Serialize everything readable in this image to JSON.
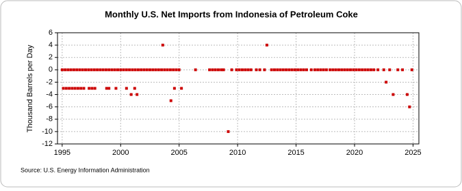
{
  "chart_data": {
    "type": "scatter",
    "title": "Monthly U.S. Net Imports from Indonesia of Petroleum Coke",
    "y_label": "Thousand Barrels per Day",
    "source": "Source: U.S. Energy Information Administration",
    "color": "#cc0000",
    "grid": true,
    "xlim": [
      1994.6,
      2025.5
    ],
    "xticks": [
      1995,
      2000,
      2005,
      2010,
      2015,
      2020,
      2025
    ],
    "ylim": [
      -12,
      6
    ],
    "yticks": [
      -12,
      -10,
      -8,
      -6,
      -4,
      -2,
      0,
      2,
      4,
      6
    ],
    "x": [
      1995,
      1995.25,
      1995.5,
      1995.75,
      1996,
      1996.25,
      1996.5,
      1996.75,
      1997,
      1997.25,
      1997.5,
      1997.75,
      1998,
      1998.25,
      1998.5,
      1998.75,
      1999,
      1999.25,
      1999.5,
      1999.75,
      2000,
      2000.25,
      2000.5,
      2000.75,
      2001,
      2001.25,
      2001.5,
      2001.75,
      2002,
      2002.25,
      2002.5,
      2002.75,
      2003,
      2003.25,
      2003.5,
      2003.75,
      2004,
      2004.25,
      2004.5,
      2004.75,
      2005,
      1995.1,
      1995.35,
      1995.6,
      1995.85,
      1996.1,
      1996.35,
      1996.6,
      1996.85,
      1997.3,
      1997.55,
      1997.8,
      1998.8,
      1999.0,
      1999.6,
      2000.5,
      2001.2,
      2004.6,
      2005.2,
      2000.9,
      2001.4,
      2004.3,
      2003.6,
      2006.4,
      2007.6,
      2007.85,
      2008.1,
      2008.35,
      2008.6,
      2008.8,
      2009.5,
      2009.9,
      2010.15,
      2010.4,
      2010.65,
      2010.9,
      2011.15,
      2011.6,
      2011.9,
      2012.3,
      2012.9,
      2013.15,
      2013.4,
      2013.65,
      2013.9,
      2014.15,
      2014.4,
      2014.65,
      2014.9,
      2015.15,
      2015.4,
      2015.65,
      2015.9,
      2016.3,
      2016.6,
      2016.85,
      2017.1,
      2017.35,
      2017.6,
      2017.9,
      2018.15,
      2018.4,
      2018.65,
      2018.9,
      2019.15,
      2019.4,
      2019.65,
      2019.9,
      2020.15,
      2020.4,
      2020.65,
      2020.9,
      2021.15,
      2021.4,
      2021.65,
      2022.0,
      2022.5,
      2023.0,
      2023.7,
      2024.1,
      2024.9,
      2009.2,
      2012.5,
      2022.7,
      2023.3,
      2024.5,
      2024.7
    ],
    "values": [
      0,
      0,
      0,
      0,
      0,
      0,
      0,
      0,
      0,
      0,
      0,
      0,
      0,
      0,
      0,
      0,
      0,
      0,
      0,
      0,
      0,
      0,
      0,
      0,
      0,
      0,
      0,
      0,
      0,
      0,
      0,
      0,
      0,
      0,
      0,
      0,
      0,
      0,
      0,
      0,
      0,
      -3,
      -3,
      -3,
      -3,
      -3,
      -3,
      -3,
      -3,
      -3,
      -3,
      -3,
      -3,
      -3,
      -3,
      -3,
      -3,
      -3,
      -3,
      -4,
      -4,
      -5,
      4,
      0,
      0,
      0,
      0,
      0,
      0,
      0,
      0,
      0,
      0,
      0,
      0,
      0,
      0,
      0,
      0,
      0,
      0,
      0,
      0,
      0,
      0,
      0,
      0,
      0,
      0,
      0,
      0,
      0,
      0,
      0,
      0,
      0,
      0,
      0,
      0,
      0,
      0,
      0,
      0,
      0,
      0,
      0,
      0,
      0,
      0,
      0,
      0,
      0,
      0,
      0,
      0,
      0,
      0,
      0,
      0,
      0,
      0,
      -10,
      4,
      -2,
      -4,
      -4,
      -6
    ]
  }
}
